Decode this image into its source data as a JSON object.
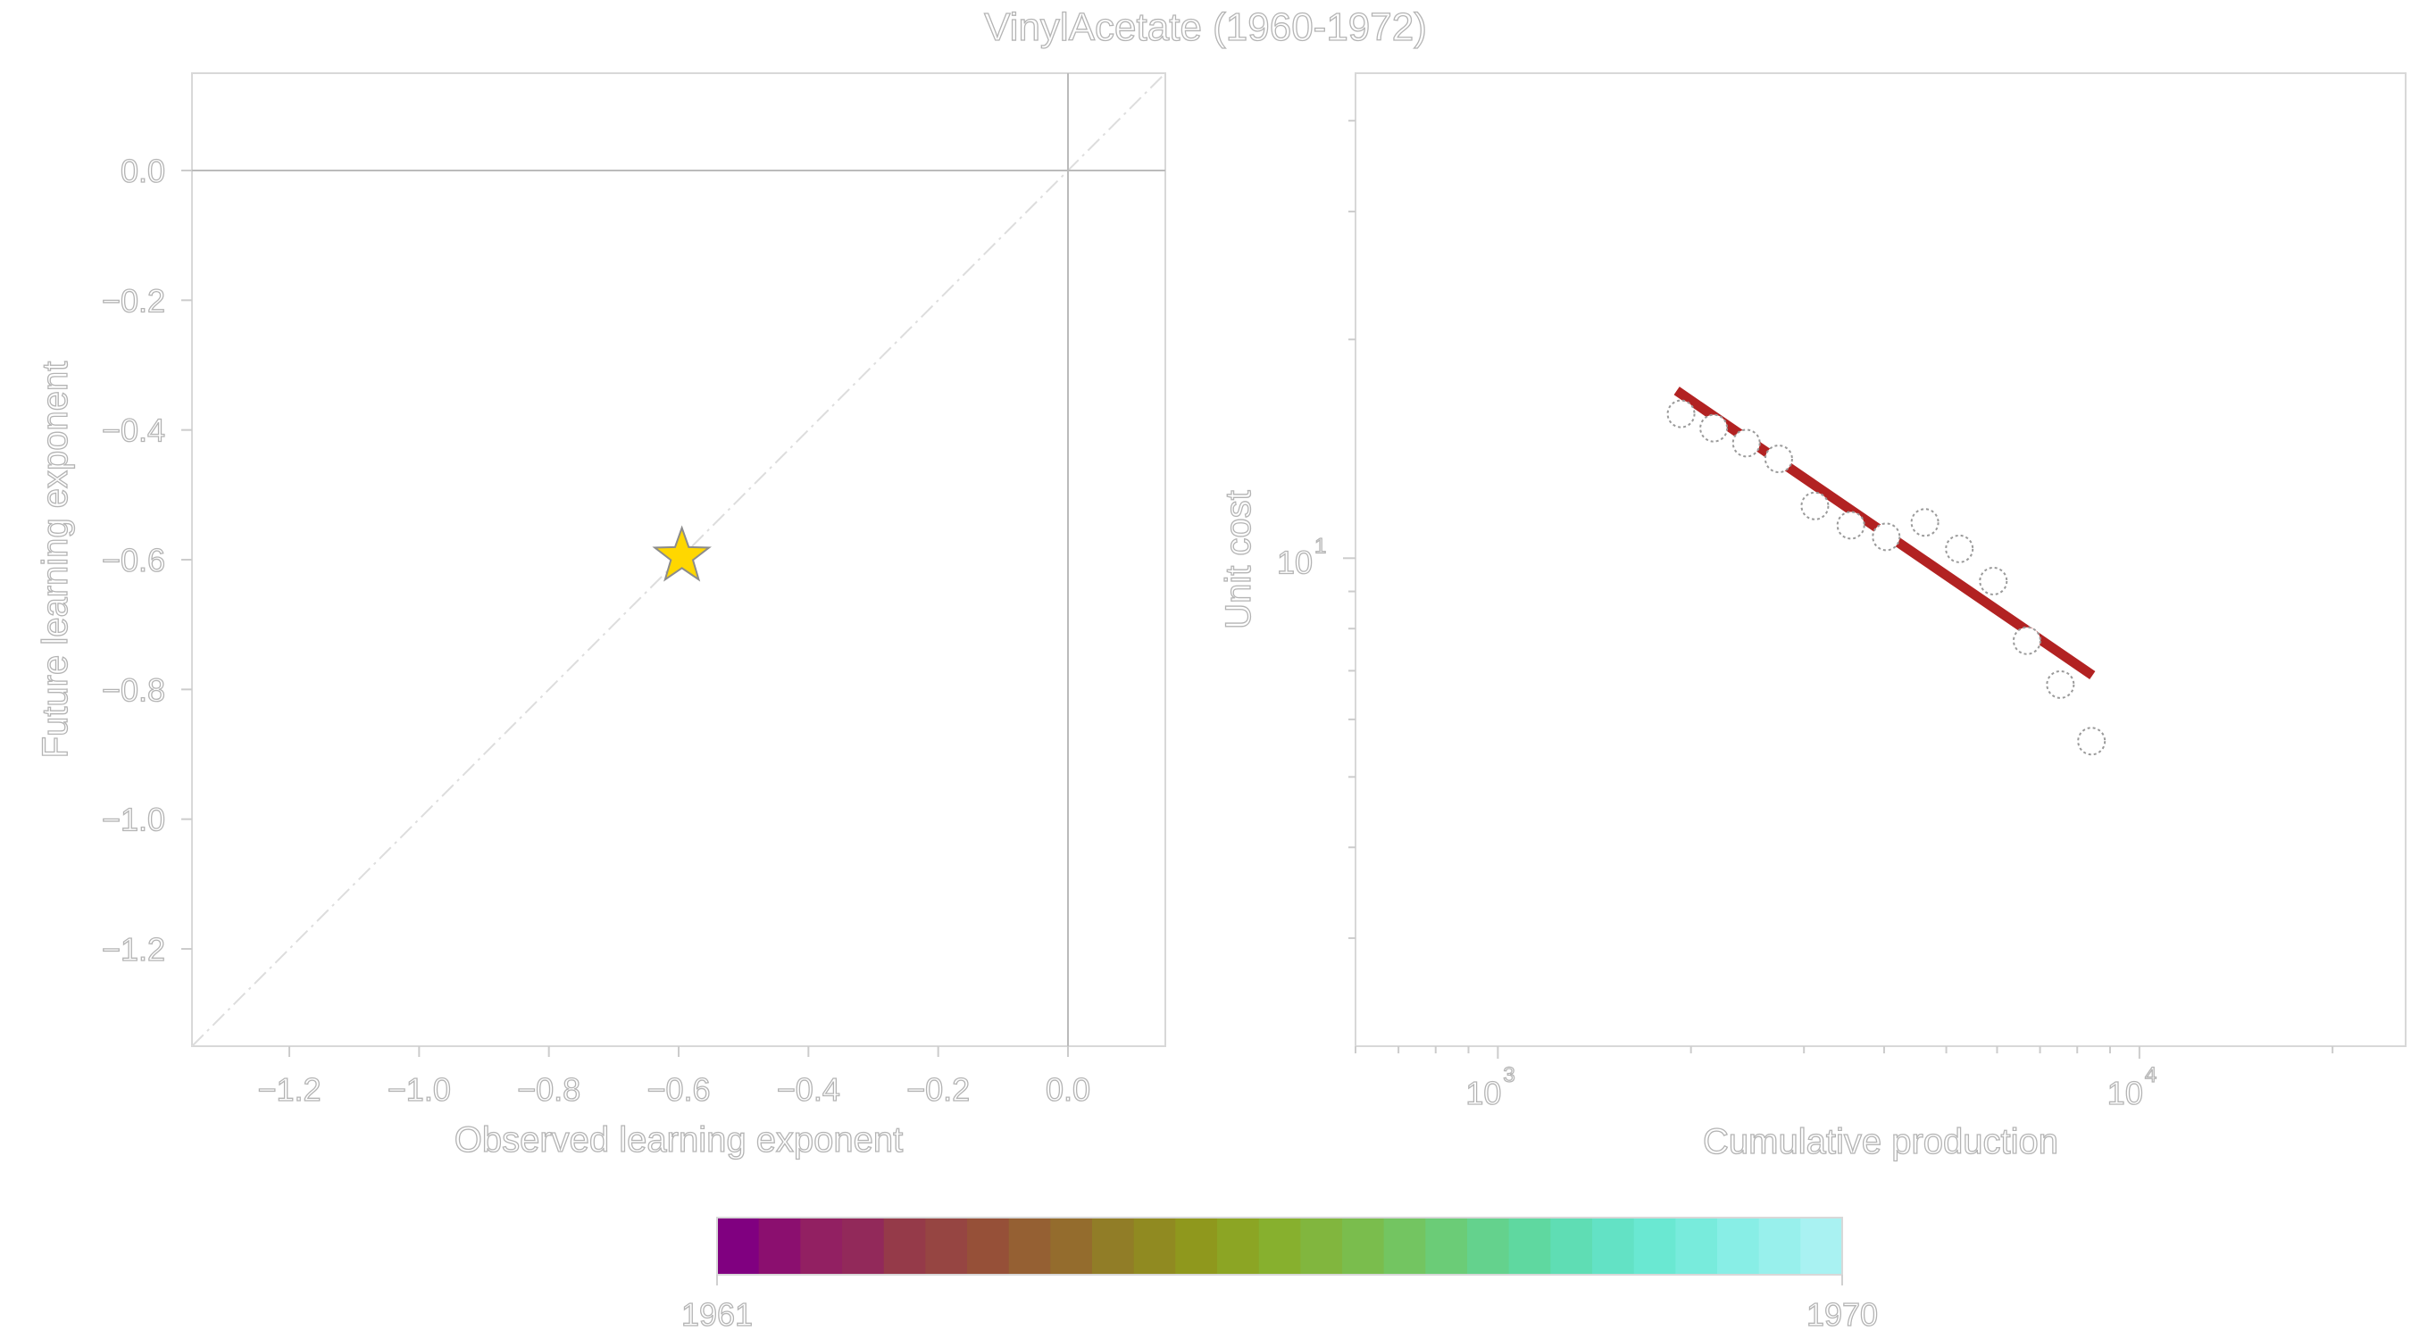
{
  "title": "VinylAcetate (1960-1972)",
  "chart_data": [
    {
      "type": "scatter",
      "xlabel": "Observed learning exponent",
      "ylabel": "Future learning exponent",
      "xlim": [
        -1.35,
        0.15
      ],
      "ylim": [
        -1.35,
        0.15
      ],
      "xticks": [
        -1.2,
        -1.0,
        -0.8,
        -0.6,
        -0.4,
        -0.2,
        0.0
      ],
      "yticks": [
        -1.2,
        -1.0,
        -0.8,
        -0.6,
        -0.4,
        -0.2,
        0.0
      ],
      "tick_labels": [
        "−1.2",
        "−1.0",
        "−0.8",
        "−0.6",
        "−0.4",
        "−0.2",
        "0.0"
      ],
      "reference_lines": {
        "x": 0.0,
        "y": 0.0,
        "diagonal": "y = x (dash-dot)"
      },
      "points": [
        {
          "x": -0.595,
          "y": -0.595,
          "marker": "star",
          "color": "#FFD700"
        }
      ],
      "grid": false
    },
    {
      "type": "scatter",
      "xlabel": "Cumulative production",
      "ylabel": "Unit cost",
      "xscale": "log",
      "yscale": "log",
      "xlim": [
        600,
        26000
      ],
      "ylim": [
        2.13,
        46.5
      ],
      "xtick_labels": [
        {
          "base": "10",
          "exp": "3",
          "value": 1000
        },
        {
          "base": "10",
          "exp": "4",
          "value": 10000
        }
      ],
      "ytick_labels": [
        {
          "base": "10",
          "exp": "1",
          "value": 10
        }
      ],
      "x_minor_ticks": [
        600,
        700,
        800,
        900,
        2000,
        3000,
        4000,
        5000,
        6000,
        7000,
        8000,
        9000,
        20000
      ],
      "y_minor_ticks": [
        3,
        4,
        5,
        6,
        7,
        8,
        9,
        20,
        30,
        40
      ],
      "points": [
        {
          "x": 1930,
          "y": 15.8
        },
        {
          "x": 2170,
          "y": 15.1
        },
        {
          "x": 2440,
          "y": 14.4
        },
        {
          "x": 2740,
          "y": 13.7
        },
        {
          "x": 3120,
          "y": 11.8
        },
        {
          "x": 3550,
          "y": 11.1
        },
        {
          "x": 4030,
          "y": 10.7
        },
        {
          "x": 4630,
          "y": 11.2
        },
        {
          "x": 5240,
          "y": 10.3
        },
        {
          "x": 5920,
          "y": 9.3
        },
        {
          "x": 6680,
          "y": 7.7
        },
        {
          "x": 7530,
          "y": 6.7
        },
        {
          "x": 8420,
          "y": 5.6
        }
      ],
      "fit_line": {
        "x": [
          1900,
          8450
        ],
        "y": [
          17.0,
          6.9
        ],
        "color": "#B22222"
      },
      "marker_style": "open circle, dotted outline"
    }
  ],
  "colorbar": {
    "min_label": "1961",
    "max_label": "1970",
    "colors": [
      "#800080",
      "#8b0f6f",
      "#922062",
      "#92295a",
      "#953a49",
      "#964542",
      "#965038",
      "#956033",
      "#946c2d",
      "#917d27",
      "#908a21",
      "#8f981d",
      "#8ca524",
      "#87b02e",
      "#81b63e",
      "#7abd4d",
      "#73c561",
      "#6bcc77",
      "#64d28d",
      "#5fd8a0",
      "#5fddb4",
      "#63e2c5",
      "#6ae8d2",
      "#78ebdc",
      "#88eee6",
      "#98f0ec",
      "#a9f2f2"
    ]
  }
}
